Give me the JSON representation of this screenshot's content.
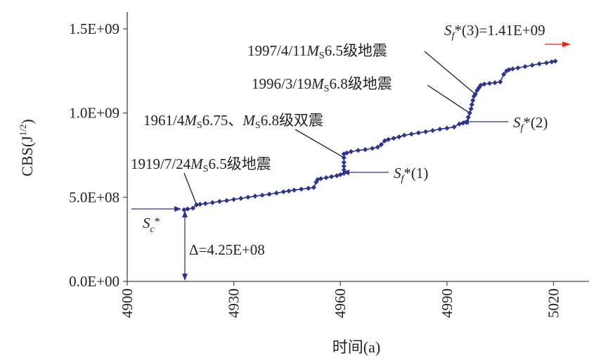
{
  "chart_data": {
    "type": "scatter",
    "ylabel": "CBS(J",
    "ylabel_sup": "1/2",
    "ylabel_close": ")",
    "xlabel": "时间(a)",
    "xlim": [
      4900,
      5030
    ],
    "ylim": [
      0,
      1600000000
    ],
    "grid": false,
    "x_ticks": [
      {
        "v": 4900,
        "label": "4900"
      },
      {
        "v": 4930,
        "label": "4930"
      },
      {
        "v": 4960,
        "label": "4960"
      },
      {
        "v": 4990,
        "label": "4990"
      },
      {
        "v": 5020,
        "label": "5020"
      }
    ],
    "y_ticks": [
      {
        "v": 0,
        "label": "0.0E+00"
      },
      {
        "v": 500000000,
        "label": "5.0E+08"
      },
      {
        "v": 1000000000,
        "label": "1.0E+09"
      },
      {
        "v": 1500000000,
        "label": "1.5E+09"
      }
    ],
    "series": [
      {
        "color": "#2b3590",
        "points": [
          [
            4916,
            425000000
          ],
          [
            4917,
            430000000
          ],
          [
            4918.5,
            435000000
          ],
          [
            4919.5,
            455000000
          ],
          [
            4920.5,
            458000000
          ],
          [
            4922,
            462000000
          ],
          [
            4924,
            468000000
          ],
          [
            4926,
            475000000
          ],
          [
            4928,
            480000000
          ],
          [
            4930,
            487000000
          ],
          [
            4932,
            493000000
          ],
          [
            4934,
            500000000
          ],
          [
            4936,
            506000000
          ],
          [
            4938,
            512000000
          ],
          [
            4940,
            518000000
          ],
          [
            4942,
            525000000
          ],
          [
            4944,
            532000000
          ],
          [
            4945.5,
            537000000
          ],
          [
            4947,
            542000000
          ],
          [
            4949,
            548000000
          ],
          [
            4951,
            553000000
          ],
          [
            4952.5,
            558000000
          ],
          [
            4953.2,
            590000000
          ],
          [
            4953.6,
            605000000
          ],
          [
            4954.5,
            610000000
          ],
          [
            4956,
            616000000
          ],
          [
            4957.5,
            622000000
          ],
          [
            4959,
            628000000
          ],
          [
            4960,
            634000000
          ],
          [
            4961,
            642000000
          ],
          [
            4961,
            662000000
          ],
          [
            4961,
            684000000
          ],
          [
            4961,
            707000000
          ],
          [
            4961,
            735000000
          ],
          [
            4961,
            757000000
          ],
          [
            4961.8,
            763000000
          ],
          [
            4963,
            771000000
          ],
          [
            4965,
            778000000
          ],
          [
            4967,
            783000000
          ],
          [
            4969,
            790000000
          ],
          [
            4970.5,
            797000000
          ],
          [
            4971.5,
            812000000
          ],
          [
            4972.5,
            835000000
          ],
          [
            4973.5,
            843000000
          ],
          [
            4975,
            850000000
          ],
          [
            4976.5,
            858000000
          ],
          [
            4978,
            868000000
          ],
          [
            4980,
            875000000
          ],
          [
            4982,
            882000000
          ],
          [
            4984,
            889000000
          ],
          [
            4986,
            896000000
          ],
          [
            4988,
            904000000
          ],
          [
            4990,
            910000000
          ],
          [
            4992,
            917000000
          ],
          [
            4993.5,
            935000000
          ],
          [
            4994.5,
            940000000
          ],
          [
            4995.5,
            944000000
          ],
          [
            4996,
            975000000
          ],
          [
            4996.4,
            1000000000
          ],
          [
            4996.8,
            1025000000
          ],
          [
            4997,
            1050000000
          ],
          [
            4997.3,
            1075000000
          ],
          [
            4997.6,
            1100000000
          ],
          [
            4998,
            1112000000
          ],
          [
            4998.5,
            1135000000
          ],
          [
            4999,
            1150000000
          ],
          [
            4999.5,
            1165000000
          ],
          [
            5000.5,
            1172000000
          ],
          [
            5002,
            1176000000
          ],
          [
            5003.5,
            1180000000
          ],
          [
            5005,
            1185000000
          ],
          [
            5006,
            1230000000
          ],
          [
            5006.8,
            1250000000
          ],
          [
            5007.5,
            1258000000
          ],
          [
            5008.5,
            1262000000
          ],
          [
            5010,
            1268000000
          ],
          [
            5012,
            1276000000
          ],
          [
            5014,
            1284000000
          ],
          [
            5016,
            1292000000
          ],
          [
            5018,
            1298000000
          ],
          [
            5019.5,
            1304000000
          ],
          [
            5020.5,
            1308000000
          ]
        ]
      }
    ],
    "annotations": [
      {
        "id": "sc",
        "sym": "S",
        "sub": "c",
        "rest": "*",
        "arrow_to": [
          4916,
          425000000
        ]
      },
      {
        "id": "delta",
        "text": "Δ=4.25E+08",
        "range": [
          0,
          425000000
        ],
        "x": 4916
      },
      {
        "id": "eq1919",
        "pre": "1919/7/24",
        "ms": "M",
        "s": "S",
        "post": "6.5级地震",
        "point": [
          4919.5,
          455000000
        ]
      },
      {
        "id": "eq1961",
        "pre": "1961/4",
        "ms": "M",
        "s": "S",
        "mid": "6.75、",
        "ms2": "M",
        "s2": "S",
        "post": "6.8级双震",
        "point": [
          4961,
          735000000
        ]
      },
      {
        "id": "eq1996",
        "pre": "1996/3/19",
        "ms": "M",
        "s": "S",
        "post": "6.8级地震",
        "point": [
          4996.4,
          1000000000
        ]
      },
      {
        "id": "eq1997",
        "pre": "1997/4/11",
        "ms": "M",
        "s": "S",
        "post": "6.5级地震",
        "point": [
          4998,
          1112000000
        ]
      },
      {
        "id": "sf1",
        "sym": "S",
        "sub": "f",
        "rest": "*(1)",
        "point": [
          4961,
          642000000
        ]
      },
      {
        "id": "sf2",
        "sym": "S",
        "sub": "f",
        "rest": "*(2)",
        "point": [
          4996,
          940000000
        ]
      },
      {
        "id": "sf3",
        "sym": "S",
        "sub": "f",
        "rest": "*(3)=1.41E+09"
      }
    ],
    "colors": {
      "series": "#2b3590",
      "arrow_blue": "#2b3590",
      "arrow_red": "#e8231c",
      "axis": "#444444"
    }
  }
}
